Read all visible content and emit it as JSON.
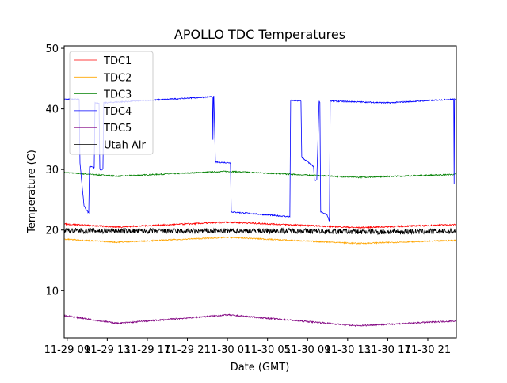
{
  "chart_data": {
    "type": "line",
    "title": "APOLLO TDC Temperatures",
    "xlabel": "Date (GMT)",
    "ylabel": "Temperature (C)",
    "x_unit": "hours since 11-29 00:00 GMT",
    "xlim": [
      8.7,
      47.85
    ],
    "ylim": [
      2.2,
      50.4
    ],
    "yticks": [
      10,
      20,
      30,
      40,
      50
    ],
    "xticks": [
      {
        "x": 9,
        "label": "11-29 09"
      },
      {
        "x": 13,
        "label": "11-29 13"
      },
      {
        "x": 17,
        "label": "11-29 17"
      },
      {
        "x": 21,
        "label": "11-29 21"
      },
      {
        "x": 25,
        "label": "11-30 01"
      },
      {
        "x": 29,
        "label": "11-30 05"
      },
      {
        "x": 33,
        "label": "11-30 09"
      },
      {
        "x": 37,
        "label": "11-30 13"
      },
      {
        "x": 41,
        "label": "11-30 17"
      },
      {
        "x": 45,
        "label": "11-30 21"
      }
    ],
    "grid": false,
    "legend_position": "top-left",
    "series": [
      {
        "name": "TDC1",
        "color": "#ff0000",
        "noise": 0.12,
        "points": [
          [
            8.7,
            21.0
          ],
          [
            14,
            20.5
          ],
          [
            25,
            21.3
          ],
          [
            38,
            20.4
          ],
          [
            47.85,
            20.9
          ]
        ]
      },
      {
        "name": "TDC2",
        "color": "#ffa500",
        "noise": 0.1,
        "points": [
          [
            8.7,
            18.5
          ],
          [
            14,
            18.0
          ],
          [
            25,
            18.8
          ],
          [
            38,
            17.8
          ],
          [
            47.85,
            18.3
          ]
        ]
      },
      {
        "name": "TDC3",
        "color": "#008000",
        "noise": 0.1,
        "points": [
          [
            8.7,
            29.5
          ],
          [
            14,
            28.9
          ],
          [
            25,
            29.7
          ],
          [
            38,
            28.7
          ],
          [
            47.85,
            29.2
          ]
        ]
      },
      {
        "name": "TDC4",
        "color": "#0000ff",
        "noise": 0.1,
        "points": [
          [
            8.7,
            41.6
          ],
          [
            10.2,
            41.6
          ],
          [
            10.28,
            31.0
          ],
          [
            10.68,
            24.0
          ],
          [
            11.07,
            23.0
          ],
          [
            11.15,
            22.8
          ],
          [
            11.23,
            30.5
          ],
          [
            11.7,
            30.3
          ],
          [
            11.78,
            41.0
          ],
          [
            12.18,
            41.0
          ],
          [
            12.26,
            30.0
          ],
          [
            12.57,
            30.0
          ],
          [
            12.65,
            41.0
          ],
          [
            23.5,
            42.0
          ],
          [
            23.55,
            35.0
          ],
          [
            23.6,
            42.0
          ],
          [
            23.64,
            42.0
          ],
          [
            23.8,
            31.2
          ],
          [
            25.3,
            31.1
          ],
          [
            25.38,
            23.0
          ],
          [
            31.23,
            22.2
          ],
          [
            31.31,
            41.4
          ],
          [
            32.34,
            41.3
          ],
          [
            32.42,
            32.0
          ],
          [
            33.6,
            30.5
          ],
          [
            33.68,
            28.2
          ],
          [
            33.92,
            28.2
          ],
          [
            34.15,
            41.2
          ],
          [
            34.23,
            41.0
          ],
          [
            34.31,
            23.0
          ],
          [
            34.95,
            22.5
          ],
          [
            35.18,
            21.5
          ],
          [
            35.26,
            41.3
          ],
          [
            41.03,
            41.0
          ],
          [
            47.59,
            41.6
          ],
          [
            47.63,
            27.5
          ],
          [
            47.67,
            41.6
          ],
          [
            47.85,
            41.6
          ]
        ]
      },
      {
        "name": "TDC5",
        "color": "#800080",
        "noise": 0.12,
        "points": [
          [
            8.7,
            5.9
          ],
          [
            14,
            4.6
          ],
          [
            25,
            6.0
          ],
          [
            38,
            4.2
          ],
          [
            47.85,
            5.0
          ]
        ]
      },
      {
        "name": "Utah Air",
        "color": "#000000",
        "noise": 0.45,
        "points": [
          [
            8.7,
            19.9
          ],
          [
            20,
            19.8
          ],
          [
            30,
            19.9
          ],
          [
            40,
            19.7
          ],
          [
            47.85,
            19.8
          ]
        ]
      }
    ]
  }
}
